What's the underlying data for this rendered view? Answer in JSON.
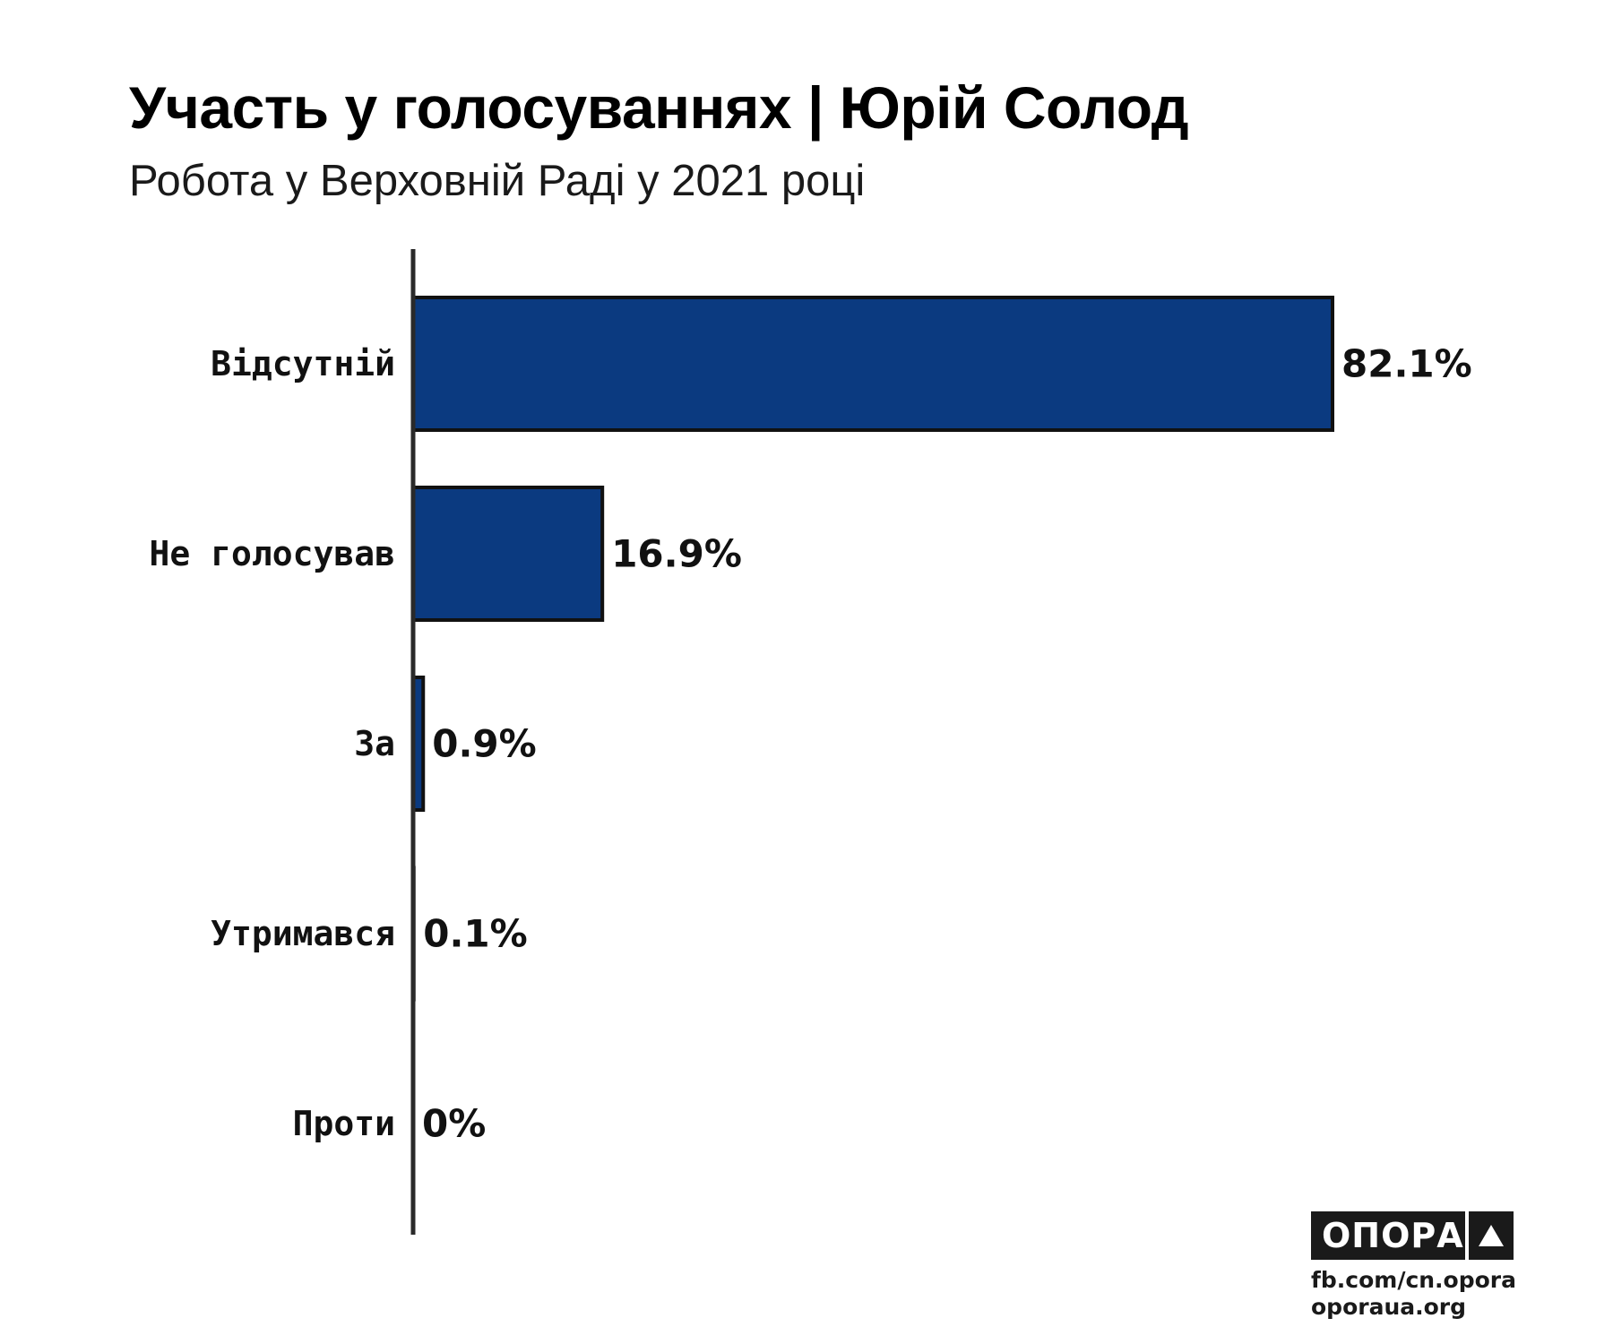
{
  "header": {
    "title": "Участь у голосуваннях | Юрій Солод",
    "subtitle": "Робота у Верховній Раді у 2021 році"
  },
  "colors": {
    "bar_fill": "#0b3a80",
    "bar_stroke": "#111111",
    "axis": "#2a2a2a"
  },
  "chart_data": {
    "type": "bar",
    "orientation": "horizontal",
    "categories": [
      "Відсутній",
      "Не голосував",
      "За",
      "Утримався",
      "Проти"
    ],
    "values": [
      82.1,
      16.9,
      0.9,
      0.1,
      0
    ],
    "value_labels": [
      "82.1%",
      "16.9%",
      "0.9%",
      "0.1%",
      "0%"
    ],
    "title": "Участь у голосуваннях | Юрій Солод",
    "subtitle": "Робота у Верховній Раді у 2021 році",
    "xlim": [
      0,
      100
    ],
    "grid": false,
    "legend": "none"
  },
  "branding": {
    "logo_text": "ОПОРА",
    "logo_icon": "triangle-icon",
    "links": [
      "fb.com/cn.opora",
      "oporaua.org"
    ]
  }
}
